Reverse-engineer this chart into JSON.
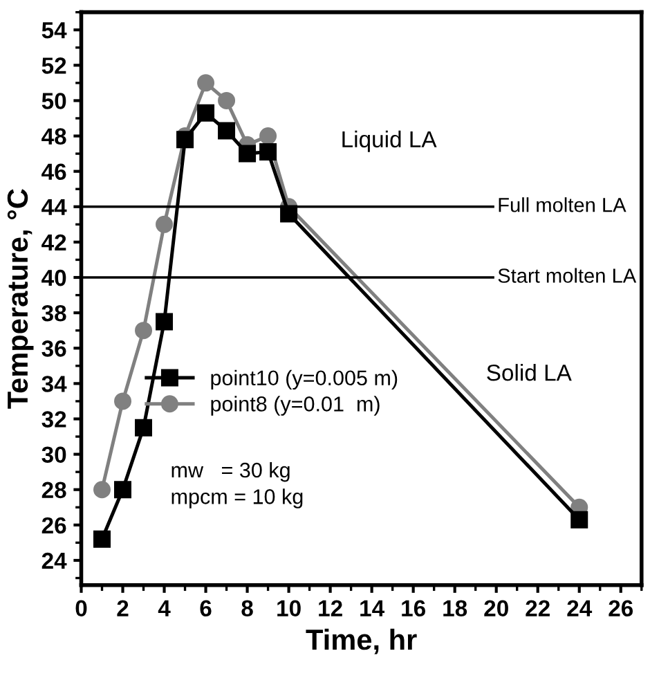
{
  "chart_data": {
    "type": "line",
    "xlabel": "Time, hr",
    "ylabel": "Temperature, °C",
    "x": [
      1,
      2,
      3,
      4,
      5,
      6,
      7,
      8,
      9,
      10,
      24
    ],
    "series": [
      {
        "name": "point10 (y=0.005 m)",
        "color": "#000000",
        "marker": "square",
        "values": [
          25.2,
          28,
          31.5,
          37.5,
          47.8,
          49.3,
          48.3,
          47,
          47.1,
          43.6,
          26.3
        ]
      },
      {
        "name": "point8 (y=0.01  m)",
        "color": "#808080",
        "marker": "circle",
        "values": [
          28,
          33,
          37,
          43,
          48,
          51,
          50,
          47.5,
          48,
          44,
          27
        ]
      }
    ],
    "xlim": [
      0,
      27
    ],
    "xticks": [
      0,
      2,
      4,
      6,
      8,
      10,
      12,
      14,
      16,
      18,
      20,
      22,
      24,
      26
    ],
    "ylim": [
      22.6,
      55
    ],
    "yticks": [
      24,
      26,
      28,
      30,
      32,
      34,
      36,
      38,
      40,
      42,
      44,
      46,
      48,
      50,
      52,
      54
    ],
    "ref_lines": [
      {
        "axis": "y",
        "value": 44,
        "label": "Full molten LA",
        "color": "#000000"
      },
      {
        "axis": "y",
        "value": 40,
        "label": "Start molten LA",
        "color": "#000000"
      }
    ],
    "annotations": [
      "Liquid LA",
      "Solid LA",
      "mw   = 30 kg",
      "mpcm = 10 kg"
    ],
    "legend": "bottom left",
    "grid": false,
    "line_style": "solid"
  }
}
